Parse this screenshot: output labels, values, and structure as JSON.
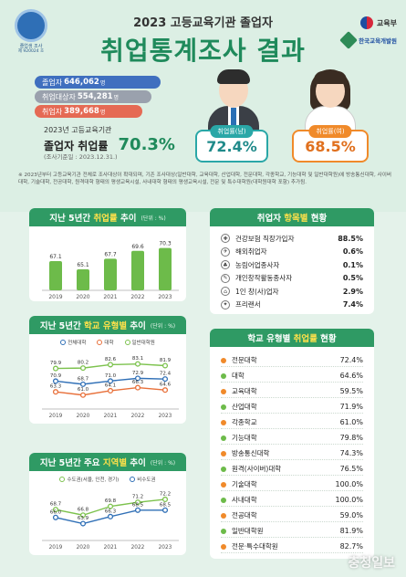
{
  "header": {
    "seal_line1": "졸업생 조사",
    "seal_line2": "제 920024 호",
    "subtitle": "2023 고등교육기관 졸업자",
    "title": "취업통계조사 결과",
    "logo_moe": "교육부",
    "logo_kedi": "한국교육개발원"
  },
  "stats": {
    "graduates_label": "졸업자",
    "graduates_value": "646,062",
    "unit": "명",
    "target_label": "취업대상자",
    "target_value": "554,281",
    "employed_label": "취업자",
    "employed_value": "389,668"
  },
  "rate": {
    "caption": "2023년 고등교육기관",
    "label": "졸업자 취업률",
    "value": "70.3%",
    "note": "(조사기준일 : 2023.12.31.)"
  },
  "gender": {
    "male_label": "취업률(남)",
    "male_value": "72.4%",
    "female_label": "취업률(여)",
    "female_value": "68.5%"
  },
  "footnote": "※ 2023년부터 고등교육기관 전체로 조사대상이 확대되며, 기존 조사대상(일반대학, 교육대학, 산업대학, 전문대학, 각종학교, 기능대학 및 일반대학원)에 방송통신대학, 사이버대학, 기술대학, 전공대학, 원격대학 형태의 평생교육시설, 사내대학 형태의 평생교육시설, 전문 및 특수대학원(대학원대학 포함) 추가됨.",
  "colors": {
    "primary": "#1f8a5b",
    "header_green": "#2f9a64",
    "highlight": "#ffe14a",
    "male": "#2aa7a7",
    "female": "#f08a2a"
  },
  "card1": {
    "title_pre": "지난 5년간 ",
    "title_hl": "취업률",
    "title_post": " 추이",
    "unit": "(단위 : %)"
  },
  "card2": {
    "title_pre": "취업자 ",
    "title_hl": "항목별",
    "title_post": " 현황"
  },
  "card3": {
    "title_pre": "지난 5년간 ",
    "title_hl": "학교 유형별",
    "title_post": " 추이",
    "unit": "(단위 : %)",
    "legend": [
      "전체대학",
      "대학",
      "일반대학원"
    ]
  },
  "card4": {
    "title_pre": "학교 유형별 ",
    "title_hl": "취업률",
    "title_post": " 현황"
  },
  "card5": {
    "title_pre": "지난 5년간 주요 ",
    "title_hl": "지역별",
    "title_post": " 추이",
    "unit": "(단위 : %)",
    "legend": [
      "수도권(서울, 인천, 경기)",
      "비수도권"
    ]
  },
  "chart_data": [
    {
      "type": "bar",
      "title": "지난 5년간 취업률 추이",
      "categories": [
        "2019",
        "2020",
        "2021",
        "2022",
        "2023"
      ],
      "values": [
        67.1,
        65.1,
        67.7,
        69.6,
        70.3
      ],
      "ylim": [
        60,
        72
      ]
    },
    {
      "type": "line",
      "title": "지난 5년간 학교 유형별 추이",
      "categories": [
        "2019",
        "2020",
        "2021",
        "2022",
        "2023"
      ],
      "series": [
        {
          "name": "일반대학원",
          "values": [
            79.9,
            80.2,
            82.6,
            83.1,
            81.9
          ]
        },
        {
          "name": "전체대학",
          "values": [
            70.9,
            68.7,
            71.0,
            72.9,
            72.4
          ]
        },
        {
          "name": "대학",
          "values": [
            63.3,
            61.0,
            64.1,
            66.3,
            64.6
          ]
        }
      ],
      "ylim": [
        55,
        90
      ]
    },
    {
      "type": "line",
      "title": "지난 5년간 주요 지역별 추이",
      "categories": [
        "2019",
        "2020",
        "2021",
        "2022",
        "2023"
      ],
      "series": [
        {
          "name": "수도권(서울, 인천, 경기)",
          "values": [
            68.7,
            66.8,
            69.8,
            71.2,
            72.2
          ]
        },
        {
          "name": "비수도권",
          "values": [
            66.0,
            63.9,
            66.3,
            68.5,
            68.5
          ]
        }
      ],
      "ylim": [
        60,
        75
      ]
    }
  ],
  "items": [
    {
      "icon": "✚",
      "label": "건강보험 직장가입자",
      "value": "88.5%"
    },
    {
      "icon": "✈",
      "label": "해외취업자",
      "value": "0.6%"
    },
    {
      "icon": "♣",
      "label": "농림어업종사자",
      "value": "0.1%"
    },
    {
      "icon": "✎",
      "label": "개인창작활동종사자",
      "value": "0.5%"
    },
    {
      "icon": "⌂",
      "label": "1인 창(사)업자",
      "value": "2.9%"
    },
    {
      "icon": "✦",
      "label": "프리랜서",
      "value": "7.4%"
    }
  ],
  "types": [
    {
      "label": "전문대학",
      "value": "72.4%"
    },
    {
      "label": "대학",
      "value": "64.6%"
    },
    {
      "label": "교육대학",
      "value": "59.5%"
    },
    {
      "label": "산업대학",
      "value": "71.9%"
    },
    {
      "label": "각종학교",
      "value": "61.0%"
    },
    {
      "label": "기능대학",
      "value": "79.8%"
    },
    {
      "label": "방송통신대학",
      "value": "74.3%"
    },
    {
      "label": "원격(사이버)대학",
      "value": "76.5%"
    },
    {
      "label": "기술대학",
      "value": "100.0%"
    },
    {
      "label": "사내대학",
      "value": "100.0%"
    },
    {
      "label": "전공대학",
      "value": "59.0%"
    },
    {
      "label": "일반대학원",
      "value": "81.9%"
    },
    {
      "label": "전문·특수대학원",
      "value": "82.7%"
    }
  ],
  "watermark": "충청일보"
}
